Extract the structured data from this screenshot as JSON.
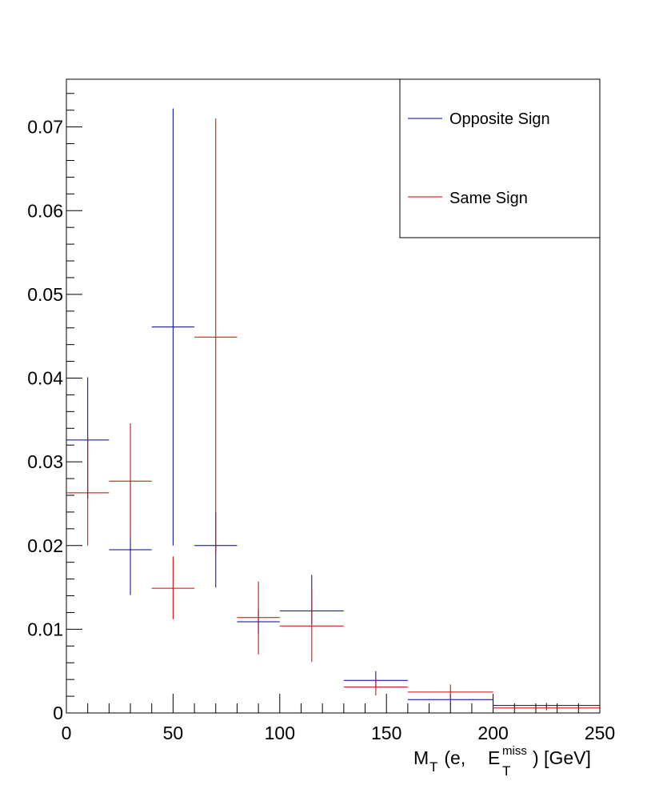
{
  "chart_data": {
    "type": "scatter",
    "style": "histogram error bars",
    "xlabel": {
      "main": "M",
      "main_sub": "T",
      "middle": " (e,  ",
      "e_main": "E",
      "e_sup": "miss",
      "e_sub": "T",
      "end": ") [GeV]"
    },
    "ylabel": "",
    "xlim": [
      0,
      250
    ],
    "ylim": [
      0,
      0.0757
    ],
    "x_ticks": [
      0,
      50,
      100,
      150,
      200,
      250
    ],
    "x_tick_labels": [
      "0",
      "50",
      "100",
      "150",
      "200",
      "250"
    ],
    "y_ticks": [
      0,
      0.01,
      0.02,
      0.03,
      0.04,
      0.05,
      0.06,
      0.07
    ],
    "y_tick_labels": [
      "0",
      "0.01",
      "0.02",
      "0.03",
      "0.04",
      "0.05",
      "0.06",
      "0.07"
    ],
    "grid": false,
    "legend_position": "top-right",
    "series": [
      {
        "name": "Opposite Sign",
        "color": "#000099",
        "points": [
          {
            "x": 10,
            "xlo": 0,
            "xhi": 20,
            "y": 0.0326,
            "ylo": 0.0256,
            "yhi": 0.0401
          },
          {
            "x": 30,
            "xlo": 20,
            "xhi": 40,
            "y": 0.0195,
            "ylo": 0.0141,
            "yhi": 0.0277
          },
          {
            "x": 50,
            "xlo": 40,
            "xhi": 60,
            "y": 0.0461,
            "ylo": 0.02,
            "yhi": 0.0722
          },
          {
            "x": 70,
            "xlo": 60,
            "xhi": 80,
            "y": 0.02,
            "ylo": 0.015,
            "yhi": 0.024
          },
          {
            "x": 90,
            "xlo": 80,
            "xhi": 100,
            "y": 0.0109,
            "ylo": 0.0095,
            "yhi": 0.0124
          },
          {
            "x": 115,
            "xlo": 100,
            "xhi": 130,
            "y": 0.0122,
            "ylo": 0.0106,
            "yhi": 0.0165
          },
          {
            "x": 145,
            "xlo": 130,
            "xhi": 160,
            "y": 0.0039,
            "ylo": 0.003,
            "yhi": 0.005
          },
          {
            "x": 180,
            "xlo": 160,
            "xhi": 200,
            "y": 0.0016,
            "ylo": 0.001,
            "yhi": 0.0023
          },
          {
            "x": 225,
            "xlo": 200,
            "xhi": 250,
            "y": 0.0009,
            "ylo": 0.0006,
            "yhi": 0.0012
          }
        ]
      },
      {
        "name": "Same Sign",
        "color": "#cc0000",
        "points": [
          {
            "x": 10,
            "xlo": 0,
            "xhi": 20,
            "y": 0.0263,
            "ylo": 0.02,
            "yhi": 0.033
          },
          {
            "x": 30,
            "xlo": 20,
            "xhi": 40,
            "y": 0.0277,
            "ylo": 0.021,
            "yhi": 0.0346
          },
          {
            "x": 50,
            "xlo": 40,
            "xhi": 60,
            "y": 0.0149,
            "ylo": 0.0112,
            "yhi": 0.0187
          },
          {
            "x": 70,
            "xlo": 60,
            "xhi": 80,
            "y": 0.0449,
            "ylo": 0.019,
            "yhi": 0.071
          },
          {
            "x": 90,
            "xlo": 80,
            "xhi": 100,
            "y": 0.0114,
            "ylo": 0.007,
            "yhi": 0.0157
          },
          {
            "x": 115,
            "xlo": 100,
            "xhi": 130,
            "y": 0.0104,
            "ylo": 0.0061,
            "yhi": 0.0147
          },
          {
            "x": 145,
            "xlo": 130,
            "xhi": 160,
            "y": 0.0031,
            "ylo": 0.0021,
            "yhi": 0.0042
          },
          {
            "x": 180,
            "xlo": 160,
            "xhi": 200,
            "y": 0.0025,
            "ylo": 0.0015,
            "yhi": 0.0034
          },
          {
            "x": 225,
            "xlo": 200,
            "xhi": 250,
            "y": 0.0006,
            "ylo": 0.0003,
            "yhi": 0.0009
          }
        ]
      }
    ]
  }
}
